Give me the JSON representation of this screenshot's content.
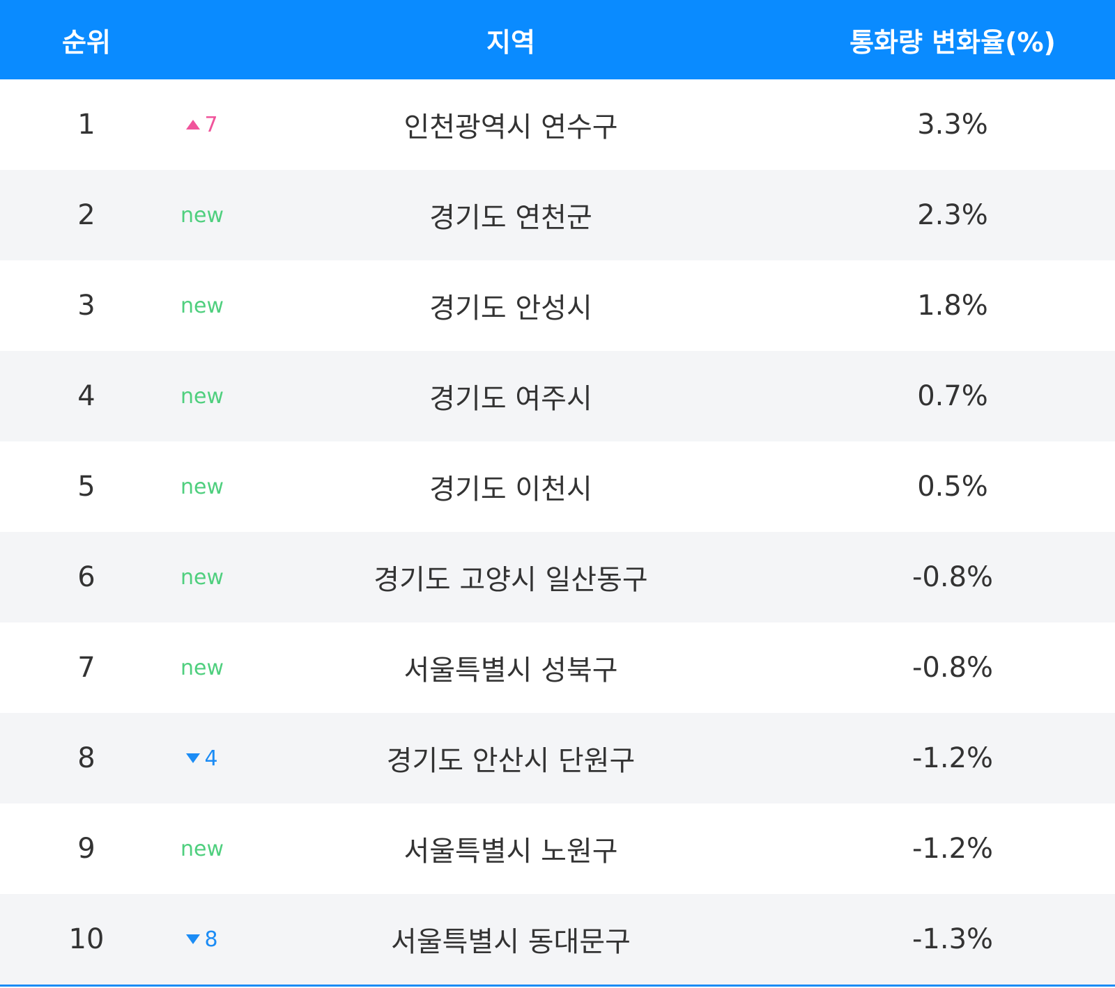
{
  "header": {
    "columns": [
      "순위",
      "지역",
      "통화량 변화율(%)"
    ]
  },
  "table": {
    "rows": [
      {
        "rank": "1",
        "trend": "up",
        "change": "7",
        "region": "인천광역시 연수구",
        "rate": "3.3%"
      },
      {
        "rank": "2",
        "change": "new",
        "region": "경기도 연천군",
        "rate": "2.3%"
      },
      {
        "rank": "3",
        "change": "new",
        "region": "경기도 안성시",
        "rate": "1.8%"
      },
      {
        "rank": "4",
        "change": "new",
        "region": "경기도 여주시",
        "rate": "0.7%"
      },
      {
        "rank": "5",
        "change": "new",
        "region": "경기도 이천시",
        "rate": "0.5%"
      },
      {
        "rank": "6",
        "change": "new",
        "region": "경기도 고양시 일산동구",
        "rate": "-0.8%"
      },
      {
        "rank": "7",
        "change": "new",
        "region": "서울특별시 성북구",
        "rate": "-0.8%"
      },
      {
        "rank": "8",
        "trend": "down",
        "change": "4",
        "region": "경기도 안산시 단원구",
        "rate": "-1.2%"
      },
      {
        "rank": "9",
        "change": "new",
        "region": "서울특별시 노원구",
        "rate": "-1.2%"
      },
      {
        "rank": "10",
        "trend": "down",
        "change": "8",
        "region": "서울특별시 동대문구",
        "rate": "-1.3%"
      }
    ]
  }
}
